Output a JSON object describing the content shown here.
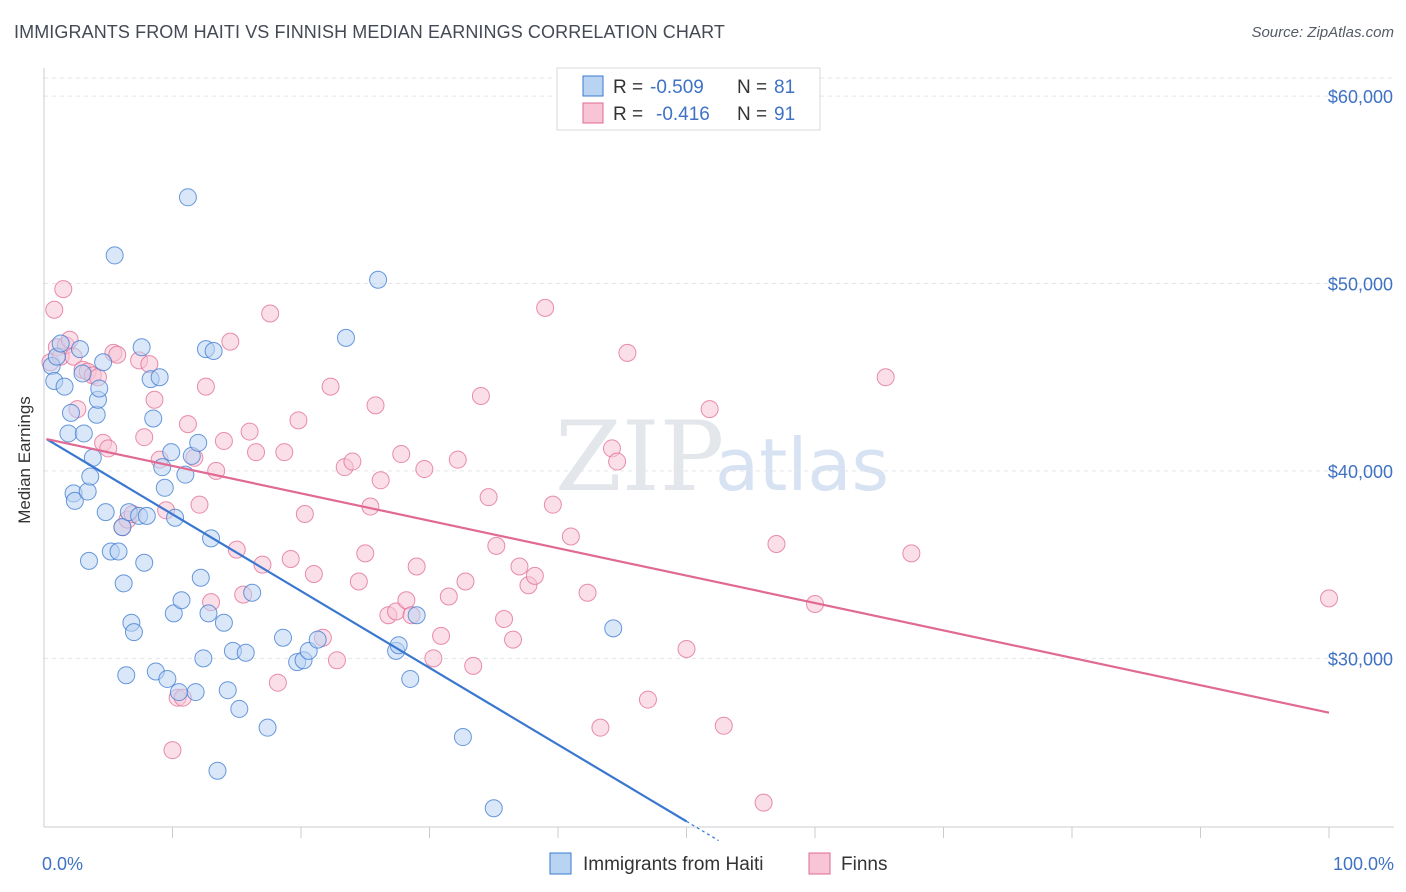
{
  "title": "IMMIGRANTS FROM HAITI VS FINNISH MEDIAN EARNINGS CORRELATION CHART",
  "source": "Source: ZipAtlas.com",
  "watermark": {
    "zip": "ZIP",
    "atlas": "atlas"
  },
  "colors": {
    "blue": "#3a78d0",
    "blue_fill": "#b9d3f3",
    "pink": "#e06a93",
    "pink_fill": "#f7c5d6",
    "tick_text": "#3f72c4"
  },
  "legend": {
    "rows": [
      {
        "r_label": "R =",
        "r_value": "-0.509",
        "n_label": "N =",
        "n_value": "81"
      },
      {
        "r_label": "R =",
        "r_value": "-0.416",
        "n_label": "N =",
        "n_value": "91"
      }
    ]
  },
  "chart_data": {
    "type": "scatter",
    "xlabel": "",
    "ylabel": "Median Earnings",
    "xlim": [
      0,
      100
    ],
    "ylim": [
      21000,
      61500
    ],
    "x_tick_labels": [
      "0.0%",
      "100.0%"
    ],
    "y_ticks": [
      30000,
      40000,
      50000,
      60000
    ],
    "y_tick_labels": [
      "$30,000",
      "$40,000",
      "$50,000",
      "$60,000"
    ],
    "grid": true,
    "legend_position": "top-center",
    "series": [
      {
        "name": "Immigrants from Haiti",
        "color": "#3a78d0",
        "trend": {
          "x0": 0.2,
          "y0": 41700,
          "x1": 50,
          "y1": 21300,
          "dash_to_x": 52.5
        },
        "points": [
          [
            0.6,
            45600
          ],
          [
            0.8,
            44800
          ],
          [
            1.0,
            46100
          ],
          [
            1.3,
            46800
          ],
          [
            1.6,
            44500
          ],
          [
            1.9,
            42000
          ],
          [
            2.1,
            43100
          ],
          [
            2.3,
            38800
          ],
          [
            2.4,
            38400
          ],
          [
            2.8,
            46500
          ],
          [
            3.0,
            45200
          ],
          [
            3.1,
            42000
          ],
          [
            3.4,
            38900
          ],
          [
            3.5,
            35200
          ],
          [
            3.6,
            39700
          ],
          [
            3.8,
            40700
          ],
          [
            4.1,
            43000
          ],
          [
            4.2,
            43800
          ],
          [
            4.3,
            44400
          ],
          [
            4.6,
            45800
          ],
          [
            4.8,
            37800
          ],
          [
            5.2,
            35700
          ],
          [
            5.5,
            51500
          ],
          [
            5.8,
            35700
          ],
          [
            6.1,
            37000
          ],
          [
            6.2,
            34000
          ],
          [
            6.4,
            29100
          ],
          [
            6.6,
            37800
          ],
          [
            6.8,
            31900
          ],
          [
            7.0,
            31400
          ],
          [
            7.4,
            37600
          ],
          [
            7.6,
            46600
          ],
          [
            7.8,
            35100
          ],
          [
            8.0,
            37600
          ],
          [
            8.3,
            44900
          ],
          [
            8.5,
            42800
          ],
          [
            8.7,
            29300
          ],
          [
            9.0,
            45000
          ],
          [
            9.2,
            40200
          ],
          [
            9.4,
            39100
          ],
          [
            9.6,
            28900
          ],
          [
            9.9,
            41000
          ],
          [
            10.1,
            32400
          ],
          [
            10.2,
            37500
          ],
          [
            10.5,
            28200
          ],
          [
            10.7,
            33100
          ],
          [
            11.0,
            39800
          ],
          [
            11.2,
            54600
          ],
          [
            11.5,
            40800
          ],
          [
            11.8,
            28200
          ],
          [
            12.0,
            41500
          ],
          [
            12.2,
            34300
          ],
          [
            12.4,
            30000
          ],
          [
            12.6,
            46500
          ],
          [
            12.8,
            32400
          ],
          [
            13.0,
            36400
          ],
          [
            13.2,
            46400
          ],
          [
            13.5,
            24000
          ],
          [
            14.0,
            31900
          ],
          [
            14.3,
            28300
          ],
          [
            14.7,
            30400
          ],
          [
            15.2,
            27300
          ],
          [
            15.7,
            30300
          ],
          [
            16.2,
            33500
          ],
          [
            17.4,
            26300
          ],
          [
            18.6,
            31100
          ],
          [
            19.7,
            29800
          ],
          [
            20.2,
            29900
          ],
          [
            20.6,
            30400
          ],
          [
            21.3,
            31000
          ],
          [
            23.5,
            47100
          ],
          [
            26.0,
            50200
          ],
          [
            27.4,
            30400
          ],
          [
            27.6,
            30700
          ],
          [
            28.5,
            28900
          ],
          [
            29.0,
            32300
          ],
          [
            32.6,
            25800
          ],
          [
            35.0,
            22000
          ],
          [
            44.3,
            31600
          ]
        ]
      },
      {
        "name": "Finns",
        "color": "#e06a93",
        "trend": {
          "x0": 0.2,
          "y0": 41700,
          "x1": 100,
          "y1": 27100
        },
        "points": [
          [
            0.5,
            45800
          ],
          [
            0.8,
            48600
          ],
          [
            1.0,
            46600
          ],
          [
            1.3,
            46100
          ],
          [
            1.5,
            49700
          ],
          [
            1.7,
            46700
          ],
          [
            2.0,
            47000
          ],
          [
            2.3,
            46100
          ],
          [
            2.6,
            43300
          ],
          [
            3.0,
            45400
          ],
          [
            3.4,
            45300
          ],
          [
            3.8,
            45100
          ],
          [
            4.2,
            45000
          ],
          [
            4.6,
            41500
          ],
          [
            5.0,
            41200
          ],
          [
            5.4,
            46300
          ],
          [
            5.7,
            46200
          ],
          [
            6.1,
            37000
          ],
          [
            6.5,
            37400
          ],
          [
            6.9,
            37700
          ],
          [
            7.4,
            45900
          ],
          [
            7.8,
            41800
          ],
          [
            8.2,
            45700
          ],
          [
            8.6,
            43800
          ],
          [
            9.0,
            40600
          ],
          [
            9.5,
            37900
          ],
          [
            10.0,
            25100
          ],
          [
            10.4,
            27900
          ],
          [
            10.8,
            27900
          ],
          [
            11.2,
            42500
          ],
          [
            11.7,
            40700
          ],
          [
            12.1,
            38200
          ],
          [
            12.6,
            44500
          ],
          [
            13.0,
            33000
          ],
          [
            13.4,
            40000
          ],
          [
            14.0,
            41600
          ],
          [
            14.5,
            46900
          ],
          [
            15.0,
            35800
          ],
          [
            15.5,
            33400
          ],
          [
            16.0,
            42100
          ],
          [
            16.5,
            41000
          ],
          [
            17.0,
            35000
          ],
          [
            17.6,
            48400
          ],
          [
            18.2,
            28700
          ],
          [
            18.7,
            41000
          ],
          [
            19.2,
            35300
          ],
          [
            19.8,
            42700
          ],
          [
            20.3,
            37700
          ],
          [
            21.0,
            34500
          ],
          [
            21.7,
            31100
          ],
          [
            22.3,
            44500
          ],
          [
            22.8,
            29900
          ],
          [
            23.4,
            40200
          ],
          [
            24.0,
            40500
          ],
          [
            24.5,
            34100
          ],
          [
            25.0,
            35600
          ],
          [
            25.4,
            38100
          ],
          [
            25.8,
            43500
          ],
          [
            26.2,
            39500
          ],
          [
            26.8,
            32300
          ],
          [
            27.4,
            32500
          ],
          [
            27.8,
            40900
          ],
          [
            28.2,
            33100
          ],
          [
            28.6,
            32300
          ],
          [
            29.0,
            34900
          ],
          [
            29.6,
            40100
          ],
          [
            30.3,
            30000
          ],
          [
            30.9,
            31200
          ],
          [
            31.5,
            33300
          ],
          [
            32.2,
            40600
          ],
          [
            32.8,
            34100
          ],
          [
            33.4,
            29600
          ],
          [
            34.0,
            44000
          ],
          [
            34.6,
            38600
          ],
          [
            35.2,
            36000
          ],
          [
            35.8,
            32100
          ],
          [
            36.5,
            31000
          ],
          [
            37.0,
            34900
          ],
          [
            37.7,
            33900
          ],
          [
            38.2,
            34400
          ],
          [
            39.0,
            48700
          ],
          [
            39.6,
            38200
          ],
          [
            41.0,
            36500
          ],
          [
            42.3,
            33500
          ],
          [
            43.3,
            26300
          ],
          [
            44.2,
            41200
          ],
          [
            44.6,
            40500
          ],
          [
            45.4,
            46300
          ],
          [
            47.0,
            27800
          ],
          [
            50.0,
            30500
          ],
          [
            51.8,
            43300
          ],
          [
            52.9,
            26400
          ],
          [
            56.0,
            22300
          ],
          [
            57.0,
            36100
          ],
          [
            60.0,
            32900
          ],
          [
            65.5,
            45000
          ],
          [
            67.5,
            35600
          ],
          [
            100.0,
            33200
          ]
        ]
      }
    ]
  },
  "bottom_legend": [
    "Immigrants from Haiti",
    "Finns"
  ]
}
